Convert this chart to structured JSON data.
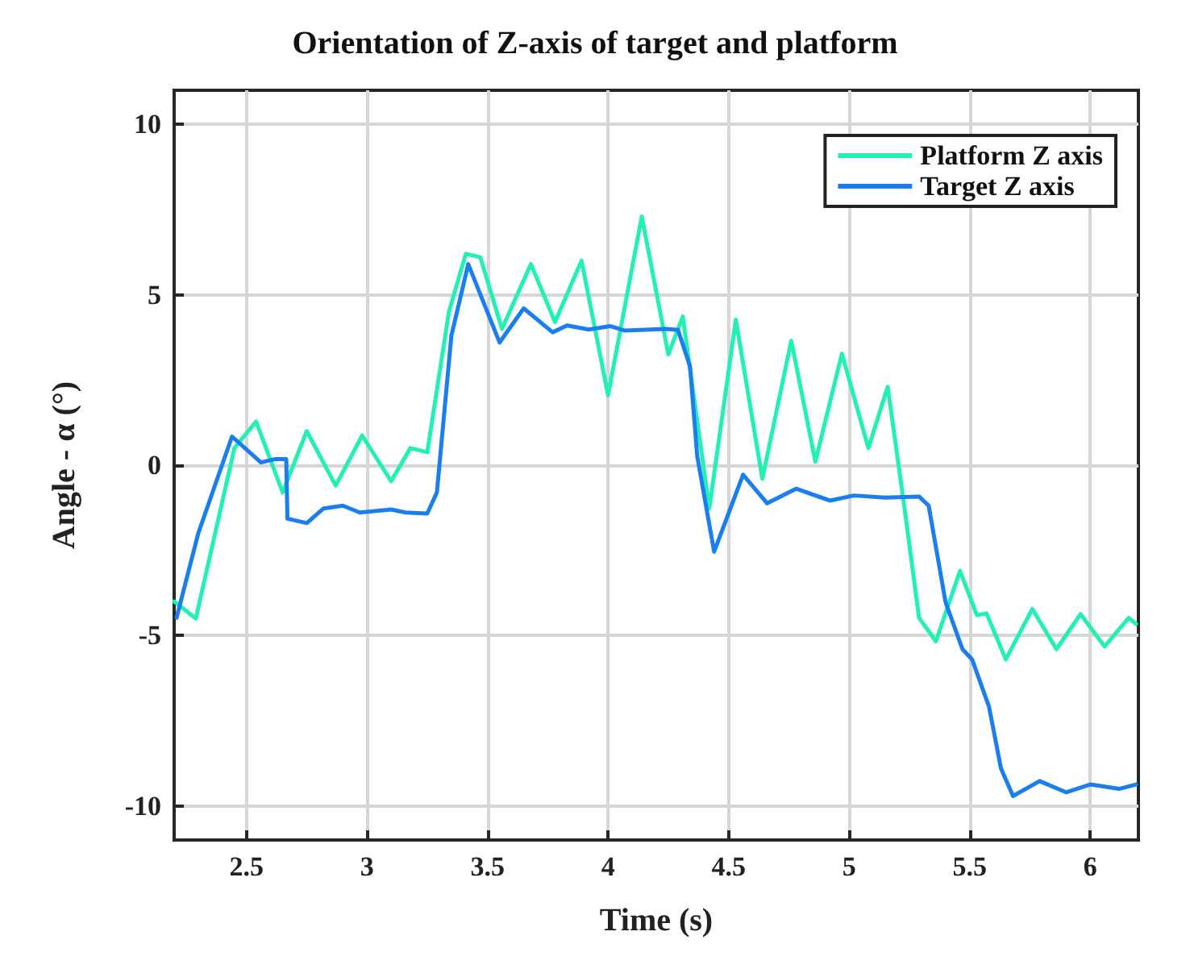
{
  "chart_data": {
    "type": "line",
    "title": "Orientation of Z-axis of target and platform",
    "xlabel": "Time (s)",
    "ylabel": "Angle - α (°)",
    "xlim": [
      2.2,
      6.2
    ],
    "xticks": [
      2.5,
      3,
      3.5,
      4,
      4.5,
      5,
      5.5,
      6
    ],
    "ylim": [
      -11,
      11
    ],
    "yticks": [
      -10,
      -5,
      0,
      5,
      10
    ],
    "grid": true,
    "legend": "top right",
    "marker": "none",
    "line_style": "solid",
    "series": [
      {
        "name": "Platform Z axis",
        "color": "#22f0b4",
        "x": [
          2.2,
          2.29,
          2.45,
          2.54,
          2.65,
          2.75,
          2.87,
          2.98,
          3.1,
          3.18,
          3.25,
          3.34,
          3.41,
          3.47,
          3.56,
          3.68,
          3.78,
          3.89,
          4.0,
          4.14,
          4.25,
          4.31,
          4.42,
          4.53,
          4.64,
          4.76,
          4.86,
          4.97,
          5.08,
          5.16,
          5.23,
          5.29,
          5.36,
          5.46,
          5.53,
          5.57,
          5.65,
          5.76,
          5.86,
          5.96,
          6.06,
          6.16,
          6.19
        ],
        "values": [
          -4.0,
          -4.5,
          0.5,
          1.28,
          -0.8,
          1.0,
          -0.6,
          0.87,
          -0.47,
          0.5,
          0.38,
          4.5,
          6.2,
          6.1,
          4.0,
          5.9,
          4.2,
          6.0,
          2.05,
          7.3,
          3.25,
          4.36,
          -1.27,
          4.27,
          -0.4,
          3.65,
          0.1,
          3.27,
          0.5,
          2.3,
          -1.27,
          -4.48,
          -5.17,
          -3.1,
          -4.4,
          -4.35,
          -5.7,
          -4.22,
          -5.4,
          -4.37,
          -5.32,
          -4.48,
          -4.66
        ]
      },
      {
        "name": "Target Z axis",
        "color": "#1a7ef0",
        "x": [
          2.21,
          2.3,
          2.44,
          2.56,
          2.62,
          2.665,
          2.67,
          2.75,
          2.82,
          2.9,
          2.97,
          3.1,
          3.16,
          3.25,
          3.29,
          3.35,
          3.42,
          3.55,
          3.65,
          3.77,
          3.83,
          3.92,
          4.01,
          4.07,
          4.24,
          4.29,
          4.34,
          4.37,
          4.44,
          4.56,
          4.66,
          4.78,
          4.92,
          5.02,
          5.15,
          5.29,
          5.33,
          5.4,
          5.47,
          5.51,
          5.58,
          5.63,
          5.68,
          5.79,
          5.9,
          6.0,
          6.12,
          6.19
        ],
        "values": [
          -4.48,
          -2.0,
          0.84,
          0.08,
          0.18,
          0.18,
          -1.57,
          -1.7,
          -1.27,
          -1.19,
          -1.39,
          -1.3,
          -1.39,
          -1.42,
          -0.8,
          3.8,
          5.9,
          3.6,
          4.6,
          3.9,
          4.1,
          3.98,
          4.08,
          3.95,
          4.0,
          3.97,
          2.9,
          0.26,
          -2.54,
          -0.28,
          -1.12,
          -0.69,
          -1.04,
          -0.89,
          -0.95,
          -0.92,
          -1.19,
          -4.02,
          -5.4,
          -5.7,
          -7.08,
          -8.9,
          -9.71,
          -9.27,
          -9.6,
          -9.37,
          -9.5,
          -9.37
        ]
      }
    ]
  }
}
